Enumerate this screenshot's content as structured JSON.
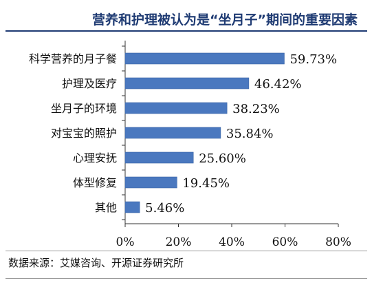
{
  "title": "营养和护理被认为是“坐月子”期间的重要因素",
  "source": "数据来源：艾媒咨询、开源证券研究所",
  "colors": {
    "bar": "#4a78bf",
    "bar_edge": "#3d66a6",
    "title": "#1f3b73",
    "axis": "#333333",
    "text": "#111111"
  },
  "chart_data": {
    "type": "bar",
    "orientation": "horizontal",
    "categories": [
      "科学营养的月子餐",
      "护理及医疗",
      "坐月子的环境",
      "对宝宝的照护",
      "心理安抚",
      "体型修复",
      "其他"
    ],
    "values": [
      59.73,
      46.42,
      38.23,
      35.84,
      25.6,
      19.45,
      5.46
    ],
    "value_labels": [
      "59.73%",
      "46.42%",
      "38.23%",
      "35.84%",
      "25.60%",
      "19.45%",
      "5.46%"
    ],
    "xlim": [
      0,
      80
    ],
    "xticks": [
      0,
      20,
      40,
      60,
      80
    ],
    "xtick_labels": [
      "0%",
      "20%",
      "40%",
      "60%",
      "80%"
    ],
    "xlabel": "",
    "ylabel": "",
    "grid": false,
    "legend": "none"
  }
}
